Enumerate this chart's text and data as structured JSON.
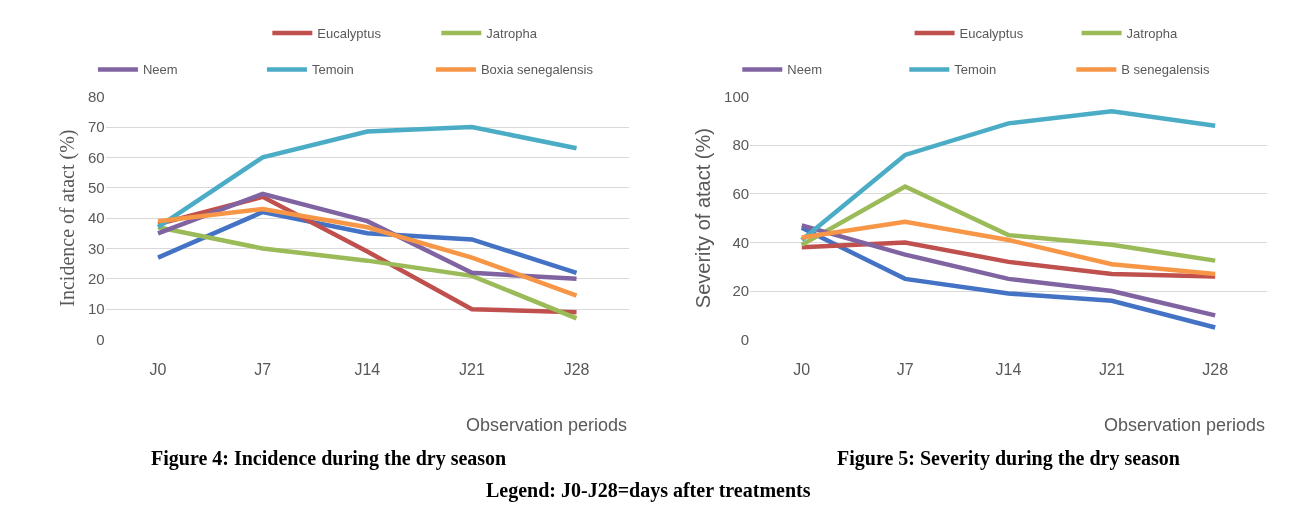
{
  "chart_data": [
    {
      "type": "line",
      "ylabel": "Incidence of atact (%)",
      "xlabel": "Observation periods",
      "categories": [
        "J0",
        "J7",
        "J14",
        "J21",
        "J28"
      ],
      "ylim": [
        0,
        80
      ],
      "yticks": [
        0,
        10,
        20,
        30,
        40,
        50,
        60,
        70,
        80
      ],
      "grid": "y",
      "legend": "top",
      "marker": "none",
      "line_style": "solid",
      "series": [
        {
          "color": "#4472c4",
          "values": [
            27,
            42,
            35,
            33,
            22
          ]
        },
        {
          "name": "Eucalyptus",
          "color": "#c0504d",
          "values": [
            38,
            47,
            29,
            10,
            9
          ]
        },
        {
          "name": "Jatropha",
          "color": "#9bbb59",
          "values": [
            37,
            30,
            26,
            21,
            7
          ]
        },
        {
          "name": "Neem",
          "color": "#8064a2",
          "values": [
            35,
            48,
            39,
            22,
            20
          ]
        },
        {
          "name": "Temoin",
          "color": "#4bacc6",
          "values": [
            37,
            60,
            68.5,
            70,
            63
          ]
        },
        {
          "name": "Boxia senegalensis",
          "color": "#f79646",
          "values": [
            39,
            43,
            37,
            27,
            14.5
          ]
        }
      ],
      "annotations": [
        "Figure 4: Incidence during the dry season",
        "Legend: J0-J28=days after treatments"
      ]
    },
    {
      "type": "line",
      "ylabel": "Severity of atact (%)",
      "xlabel": "Observation periods",
      "categories": [
        "J0",
        "J7",
        "J14",
        "J21",
        "J28"
      ],
      "ylim": [
        0,
        100
      ],
      "yticks": [
        0,
        20,
        40,
        60,
        80,
        100
      ],
      "grid": "y",
      "legend": "top",
      "marker": "none",
      "line_style": "solid",
      "series": [
        {
          "color": "#4472c4",
          "values": [
            46,
            25,
            19,
            16,
            5
          ]
        },
        {
          "name": "Eucalyptus",
          "color": "#c0504d",
          "values": [
            38,
            40,
            32,
            27,
            26
          ]
        },
        {
          "name": "Jatropha",
          "color": "#9bbb59",
          "values": [
            39,
            63,
            43,
            39,
            32.5
          ]
        },
        {
          "name": "Neem",
          "color": "#8064a2",
          "values": [
            47,
            35,
            25,
            20,
            10
          ]
        },
        {
          "name": "Temoin",
          "color": "#4bacc6",
          "values": [
            41,
            76,
            89,
            94,
            88
          ]
        },
        {
          "name": "B senegalensis",
          "color": "#f79646",
          "values": [
            42,
            48.5,
            41,
            31,
            27
          ]
        }
      ],
      "annotations": [
        "Figure 5: Severity during the dry season"
      ]
    }
  ]
}
